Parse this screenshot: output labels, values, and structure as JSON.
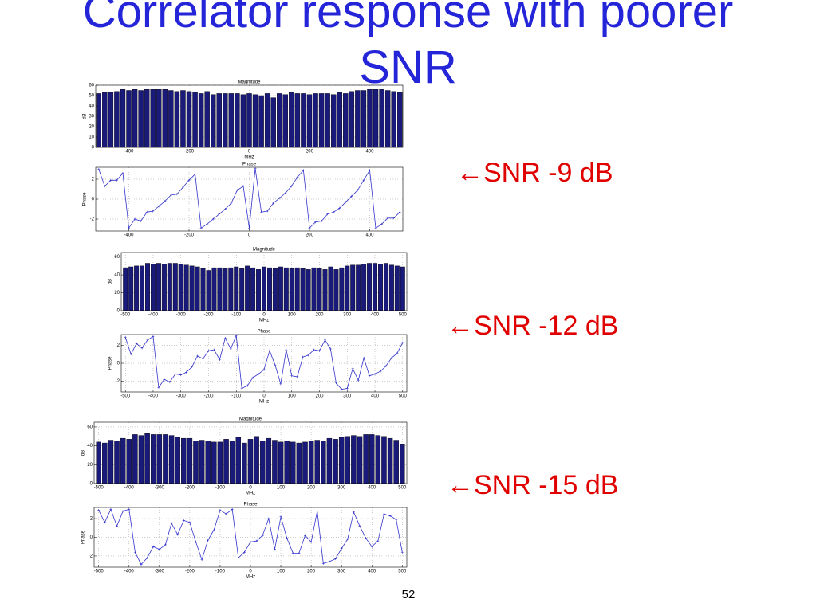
{
  "slide": {
    "title": "Correlator response with poorer SNR",
    "labels": [
      "←SNR -9 dB",
      "←SNR -12 dB",
      "←SNR -15 dB"
    ],
    "page": "52"
  },
  "chart_data": [
    {
      "type": "bar",
      "title": "Magnitude",
      "xlabel": "MHz",
      "ylabel": "dB",
      "color": "#1a1a7a",
      "grid": true,
      "x": [
        -500,
        -480,
        -460,
        -440,
        -420,
        -400,
        -380,
        -360,
        -340,
        -320,
        -300,
        -280,
        -260,
        -240,
        -220,
        -200,
        -180,
        -160,
        -140,
        -120,
        -100,
        -80,
        -60,
        -40,
        -20,
        0,
        20,
        40,
        60,
        80,
        100,
        120,
        140,
        160,
        180,
        200,
        220,
        240,
        260,
        280,
        300,
        320,
        340,
        360,
        380,
        400,
        420,
        440,
        460,
        480,
        500
      ],
      "values": [
        52,
        53,
        53,
        54,
        56,
        55,
        56,
        55,
        56,
        56,
        56,
        56,
        55,
        54,
        55,
        54,
        53,
        52,
        54,
        51,
        52,
        52,
        52,
        52,
        51,
        52,
        51,
        50,
        52,
        48,
        52,
        51,
        53,
        52,
        52,
        51,
        52,
        52,
        52,
        51,
        53,
        52,
        54,
        55,
        55,
        56,
        56,
        56,
        55,
        54,
        53
      ],
      "xlim": [
        -510,
        510
      ],
      "xticks": [
        -400,
        -200,
        0,
        200,
        400
      ],
      "ylim": [
        0,
        60
      ],
      "yticks": [
        0,
        10,
        20,
        30,
        40,
        50,
        60
      ]
    },
    {
      "type": "line",
      "title": "Phase",
      "ylabel": "Phase",
      "color": "#3333cc",
      "grid": true,
      "x": [
        -500,
        -480,
        -460,
        -440,
        -420,
        -400,
        -380,
        -360,
        -340,
        -320,
        -300,
        -280,
        -260,
        -240,
        -220,
        -200,
        -180,
        -160,
        -140,
        -120,
        -100,
        -80,
        -60,
        -40,
        -20,
        0,
        20,
        40,
        60,
        80,
        100,
        120,
        140,
        160,
        180,
        200,
        220,
        240,
        260,
        280,
        300,
        320,
        340,
        360,
        380,
        400,
        420,
        440,
        460,
        480,
        500
      ],
      "values": [
        3.0,
        1.3,
        1.9,
        1.9,
        2.6,
        -2.9,
        -2.0,
        -2.2,
        -1.3,
        -1.2,
        -0.7,
        -0.2,
        0.4,
        0.5,
        1.2,
        1.9,
        2.5,
        -2.9,
        -2.5,
        -2.0,
        -1.5,
        -1.0,
        -0.4,
        0.9,
        1.3,
        -2.9,
        3.1,
        -1.3,
        -1.2,
        -0.4,
        0.1,
        0.6,
        1.3,
        2.2,
        2.9,
        -2.9,
        -2.3,
        -2.2,
        -1.5,
        -1.3,
        -0.9,
        -0.3,
        0.3,
        0.9,
        1.9,
        2.9,
        -2.9,
        -2.5,
        -1.9,
        -1.9,
        -1.3
      ],
      "xlim": [
        -510,
        510
      ],
      "xticks": [
        -400,
        -200,
        0,
        200,
        400
      ],
      "ylim": [
        -3.2,
        3.2
      ],
      "yticks": [
        -2,
        0,
        2
      ]
    },
    {
      "type": "bar",
      "title": "Magnitude",
      "xlabel": "MHz",
      "ylabel": "dB",
      "color": "#1a1a7a",
      "grid": true,
      "x": [
        -500,
        -480,
        -460,
        -440,
        -420,
        -400,
        -380,
        -360,
        -340,
        -320,
        -300,
        -280,
        -260,
        -240,
        -220,
        -200,
        -180,
        -160,
        -140,
        -120,
        -100,
        -80,
        -60,
        -40,
        -20,
        0,
        20,
        40,
        60,
        80,
        100,
        120,
        140,
        160,
        180,
        200,
        220,
        240,
        260,
        280,
        300,
        320,
        340,
        360,
        380,
        400,
        420,
        440,
        460,
        480,
        500
      ],
      "values": [
        48,
        49,
        50,
        50,
        53,
        52,
        53,
        52,
        53,
        53,
        52,
        51,
        50,
        49,
        47,
        45,
        48,
        48,
        47,
        48,
        49,
        47,
        50,
        48,
        46,
        49,
        48,
        47,
        49,
        48,
        47,
        48,
        47,
        46,
        48,
        47,
        46,
        49,
        46,
        48,
        50,
        51,
        51,
        52,
        53,
        53,
        52,
        53,
        51,
        50,
        49
      ],
      "xlim": [
        -515,
        515
      ],
      "xticks": [
        -500,
        -400,
        -300,
        -200,
        -100,
        0,
        100,
        200,
        300,
        400,
        500
      ],
      "ylim": [
        0,
        65
      ],
      "yticks": [
        0,
        20,
        40,
        60
      ]
    },
    {
      "type": "line",
      "title": "Phase",
      "xlabel": "MHz",
      "ylabel": "Phase",
      "color": "#3333cc",
      "grid": true,
      "x": [
        -500,
        -480,
        -460,
        -440,
        -420,
        -400,
        -380,
        -360,
        -340,
        -320,
        -300,
        -280,
        -260,
        -240,
        -220,
        -200,
        -180,
        -160,
        -140,
        -120,
        -100,
        -80,
        -60,
        -40,
        -20,
        0,
        20,
        40,
        60,
        80,
        100,
        120,
        140,
        160,
        180,
        200,
        220,
        240,
        260,
        280,
        300,
        320,
        340,
        360,
        380,
        400,
        420,
        440,
        460,
        480,
        500
      ],
      "values": [
        2.9,
        1.0,
        2.2,
        1.7,
        2.6,
        3.0,
        -2.7,
        -1.8,
        -2.1,
        -1.2,
        -1.3,
        -1.0,
        -0.4,
        0.8,
        0.5,
        1.4,
        1.5,
        0.4,
        2.8,
        1.6,
        3.1,
        -2.8,
        -2.5,
        -1.6,
        -1.2,
        -0.7,
        1.4,
        -0.2,
        -2.3,
        1.5,
        -1.4,
        -1.5,
        0.7,
        0.9,
        1.5,
        1.4,
        2.6,
        1.6,
        -2.2,
        -2.9,
        -2.8,
        -0.6,
        -1.9,
        0.6,
        -1.4,
        -1.2,
        -0.9,
        -0.3,
        0.6,
        1.1,
        2.3
      ],
      "xlim": [
        -515,
        515
      ],
      "xticks": [
        -500,
        -400,
        -300,
        -200,
        -100,
        0,
        100,
        200,
        300,
        400,
        500
      ],
      "ylim": [
        -3.2,
        3.2
      ],
      "yticks": [
        -2,
        0,
        2
      ]
    },
    {
      "type": "bar",
      "title": "Magnitude",
      "xlabel": "MHz",
      "ylabel": "dB",
      "color": "#1a1a7a",
      "grid": true,
      "x": [
        -500,
        -480,
        -460,
        -440,
        -420,
        -400,
        -380,
        -360,
        -340,
        -320,
        -300,
        -280,
        -260,
        -240,
        -220,
        -200,
        -180,
        -160,
        -140,
        -120,
        -100,
        -80,
        -60,
        -40,
        -20,
        0,
        20,
        40,
        60,
        80,
        100,
        120,
        140,
        160,
        180,
        200,
        220,
        240,
        260,
        280,
        300,
        320,
        340,
        360,
        380,
        400,
        420,
        440,
        460,
        480,
        500
      ],
      "values": [
        44,
        43,
        46,
        45,
        48,
        47,
        52,
        51,
        53,
        52,
        52,
        52,
        51,
        49,
        48,
        48,
        45,
        46,
        45,
        44,
        44,
        47,
        45,
        49,
        43,
        47,
        50,
        45,
        48,
        46,
        44,
        45,
        44,
        43,
        44,
        45,
        46,
        45,
        48,
        47,
        49,
        50,
        51,
        50,
        52,
        52,
        51,
        50,
        48,
        46,
        42
      ],
      "xlim": [
        -515,
        515
      ],
      "xticks": [
        -500,
        -400,
        -300,
        -200,
        -100,
        0,
        100,
        200,
        300,
        400,
        500
      ],
      "ylim": [
        0,
        65
      ],
      "yticks": [
        0,
        20,
        40,
        60
      ]
    },
    {
      "type": "line",
      "title": "Phase",
      "xlabel": "MHz",
      "ylabel": "Phase",
      "color": "#3333cc",
      "grid": true,
      "x": [
        -500,
        -480,
        -460,
        -440,
        -420,
        -400,
        -380,
        -360,
        -340,
        -320,
        -300,
        -280,
        -260,
        -240,
        -220,
        -200,
        -180,
        -160,
        -140,
        -120,
        -100,
        -80,
        -60,
        -40,
        -20,
        0,
        20,
        40,
        60,
        80,
        100,
        120,
        140,
        160,
        180,
        200,
        220,
        240,
        260,
        280,
        300,
        320,
        340,
        360,
        380,
        400,
        420,
        440,
        460,
        480,
        500
      ],
      "values": [
        2.9,
        1.6,
        3.0,
        1.2,
        2.8,
        3.0,
        -1.6,
        -2.9,
        -2.2,
        -1.0,
        -1.3,
        -0.8,
        1.5,
        0.3,
        1.8,
        1.6,
        -0.5,
        -2.4,
        -0.3,
        0.8,
        2.9,
        2.5,
        3.0,
        -2.2,
        -1.6,
        -0.5,
        -0.4,
        0.2,
        2.0,
        -1.3,
        2.2,
        -0.1,
        -1.7,
        -1.7,
        0.2,
        -0.5,
        2.8,
        -2.8,
        -2.6,
        -2.3,
        -1.2,
        -0.2,
        2.7,
        1.2,
        -0.1,
        -1.0,
        -0.4,
        2.5,
        2.3,
        1.9,
        -1.6
      ],
      "xlim": [
        -515,
        515
      ],
      "xticks": [
        -500,
        -400,
        -300,
        -200,
        -100,
        0,
        100,
        200,
        300,
        400,
        500
      ],
      "ylim": [
        -3.2,
        3.2
      ],
      "yticks": [
        -2,
        0,
        2
      ]
    }
  ]
}
